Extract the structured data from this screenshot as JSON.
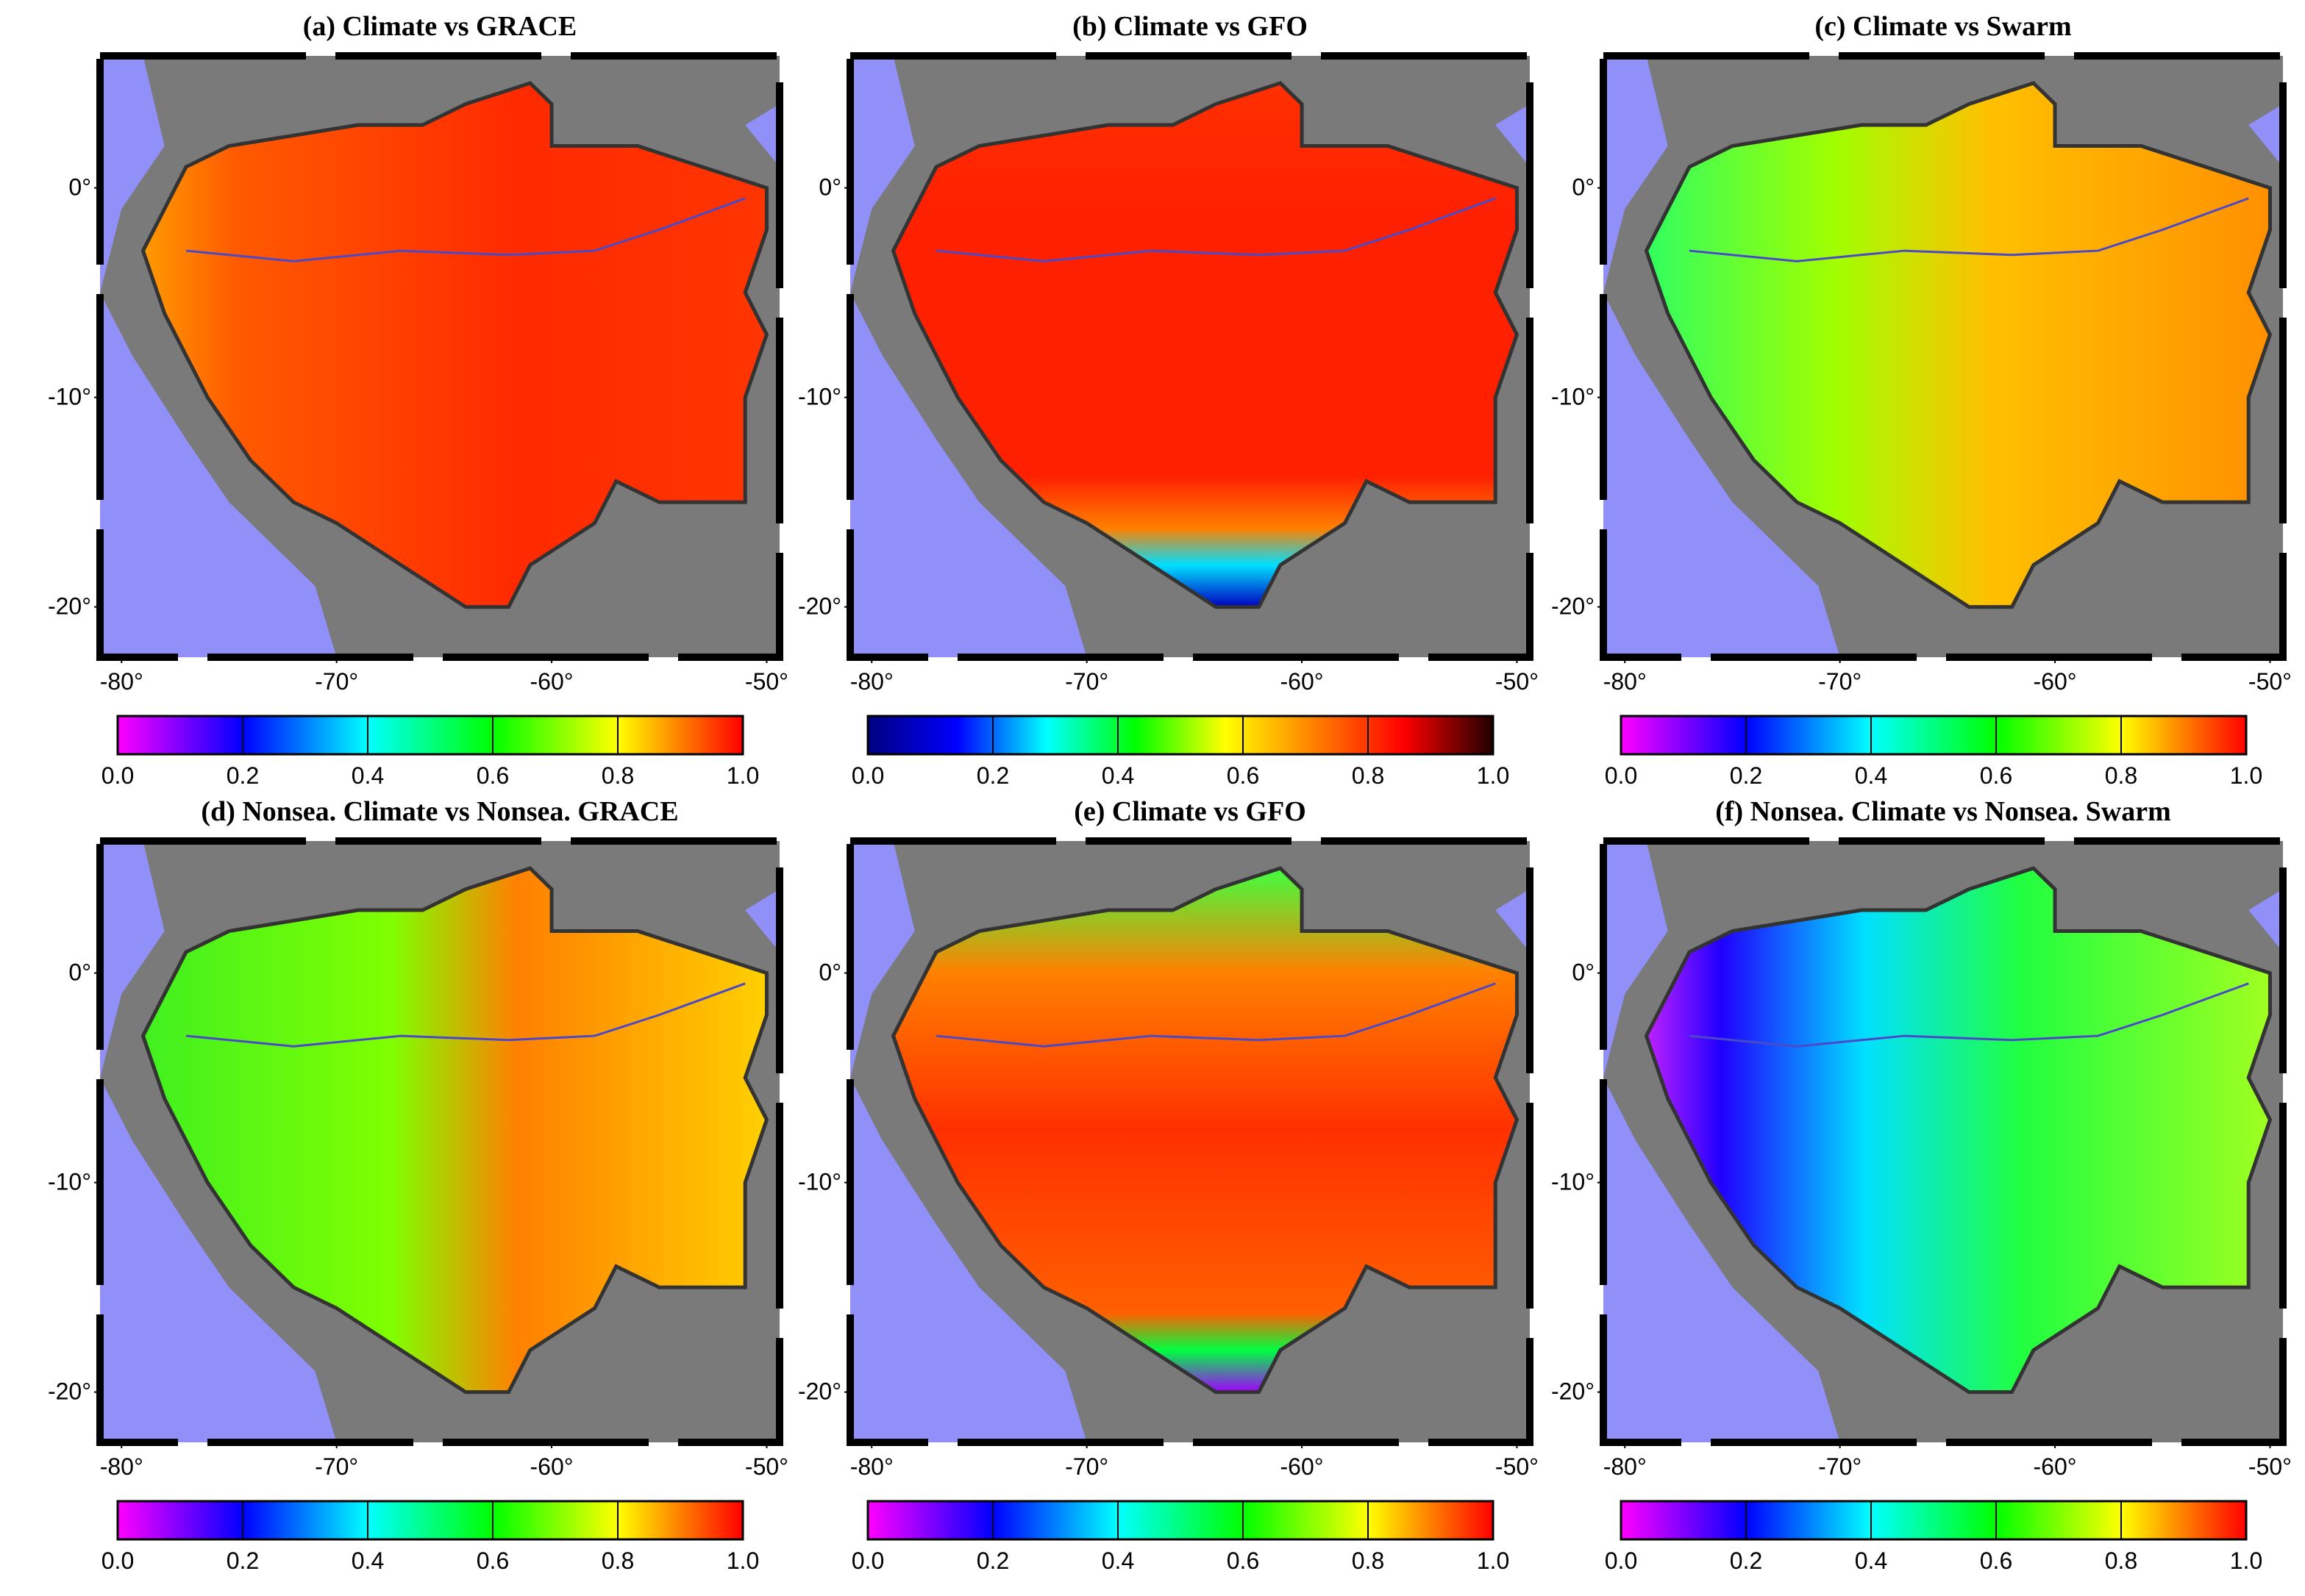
{
  "panels": [
    {
      "title": "(a) Climate vs GRACE",
      "xlim": [
        -81,
        -49.4
      ],
      "ylim": [
        -22.4,
        6.3
      ],
      "xticks": [
        {
          "value": -80,
          "label": "-80°"
        },
        {
          "value": -70,
          "label": "-70°"
        },
        {
          "value": -60,
          "label": "-60°"
        },
        {
          "value": -50,
          "label": "-50°"
        }
      ],
      "yticks": [
        {
          "value": 0,
          "label": "0°"
        },
        {
          "value": -10,
          "label": "-10°"
        },
        {
          "value": -20,
          "label": "-20°"
        }
      ],
      "colorbar": {
        "lim": [
          0,
          1
        ],
        "colormap": [
          "#ff00ff",
          "#0000ff",
          "#00ffff",
          "#00ff00",
          "#ffff00",
          "#ff0000"
        ],
        "ticks": [
          {
            "value": 0,
            "label": "0.0"
          },
          {
            "value": 0.2,
            "label": "0.2"
          },
          {
            "value": 0.4,
            "label": "0.4"
          },
          {
            "value": 0.6,
            "label": "0.6"
          },
          {
            "value": 0.8,
            "label": "0.8"
          },
          {
            "value": 1,
            "label": "1.0"
          }
        ]
      }
    },
    {
      "title": "(b) Climate vs GFO",
      "xlim": [
        -81,
        -49.4
      ],
      "ylim": [
        -22.4,
        6.3
      ],
      "xticks": [
        {
          "value": -80,
          "label": "-80°"
        },
        {
          "value": -70,
          "label": "-70°"
        },
        {
          "value": -60,
          "label": "-60°"
        },
        {
          "value": -50,
          "label": "-50°"
        }
      ],
      "yticks": [
        {
          "value": 0,
          "label": "0°"
        },
        {
          "value": -10,
          "label": "-10°"
        },
        {
          "value": -20,
          "label": "-20°"
        }
      ],
      "colorbar": {
        "lim": [
          0,
          1
        ],
        "colormap": [
          "#000080",
          "#0000ff",
          "#00ffff",
          "#00ff00",
          "#ffff00",
          "#ff8000",
          "#ff0000",
          "#200000"
        ],
        "ticks": [
          {
            "value": 0,
            "label": "0.0"
          },
          {
            "value": 0.2,
            "label": "0.2"
          },
          {
            "value": 0.4,
            "label": "0.4"
          },
          {
            "value": 0.6,
            "label": "0.6"
          },
          {
            "value": 0.8,
            "label": "0.8"
          },
          {
            "value": 1,
            "label": "1.0"
          }
        ]
      }
    },
    {
      "title": "(c) Climate vs Swarm",
      "xlim": [
        -81,
        -49.4
      ],
      "ylim": [
        -22.4,
        6.3
      ],
      "xticks": [
        {
          "value": -80,
          "label": "-80°"
        },
        {
          "value": -70,
          "label": "-70°"
        },
        {
          "value": -60,
          "label": "-60°"
        },
        {
          "value": -50,
          "label": "-50°"
        }
      ],
      "yticks": [
        {
          "value": 0,
          "label": "0°"
        },
        {
          "value": -10,
          "label": "-10°"
        },
        {
          "value": -20,
          "label": "-20°"
        }
      ],
      "colorbar": {
        "lim": [
          0,
          1
        ],
        "colormap": [
          "#ff00ff",
          "#0000ff",
          "#00ffff",
          "#00ff00",
          "#ffff00",
          "#ff0000"
        ],
        "ticks": [
          {
            "value": 0,
            "label": "0.0"
          },
          {
            "value": 0.2,
            "label": "0.2"
          },
          {
            "value": 0.4,
            "label": "0.4"
          },
          {
            "value": 0.6,
            "label": "0.6"
          },
          {
            "value": 0.8,
            "label": "0.8"
          },
          {
            "value": 1,
            "label": "1.0"
          }
        ]
      }
    },
    {
      "title": "(d) Nonsea. Climate vs Nonsea. GRACE",
      "xlim": [
        -81,
        -49.4
      ],
      "ylim": [
        -22.4,
        6.3
      ],
      "xticks": [
        {
          "value": -80,
          "label": "-80°"
        },
        {
          "value": -70,
          "label": "-70°"
        },
        {
          "value": -60,
          "label": "-60°"
        },
        {
          "value": -50,
          "label": "-50°"
        }
      ],
      "yticks": [
        {
          "value": 0,
          "label": "0°"
        },
        {
          "value": -10,
          "label": "-10°"
        },
        {
          "value": -20,
          "label": "-20°"
        }
      ],
      "colorbar": {
        "lim": [
          0,
          1
        ],
        "colormap": [
          "#ff00ff",
          "#0000ff",
          "#00ffff",
          "#00ff00",
          "#ffff00",
          "#ff0000"
        ],
        "ticks": [
          {
            "value": 0,
            "label": "0.0"
          },
          {
            "value": 0.2,
            "label": "0.2"
          },
          {
            "value": 0.4,
            "label": "0.4"
          },
          {
            "value": 0.6,
            "label": "0.6"
          },
          {
            "value": 0.8,
            "label": "0.8"
          },
          {
            "value": 1,
            "label": "1.0"
          }
        ]
      }
    },
    {
      "title": "(e) Climate vs GFO",
      "xlim": [
        -81,
        -49.4
      ],
      "ylim": [
        -22.4,
        6.3
      ],
      "xticks": [
        {
          "value": -80,
          "label": "-80°"
        },
        {
          "value": -70,
          "label": "-70°"
        },
        {
          "value": -60,
          "label": "-60°"
        },
        {
          "value": -50,
          "label": "-50°"
        }
      ],
      "yticks": [
        {
          "value": 0,
          "label": "0°"
        },
        {
          "value": -10,
          "label": "-10°"
        },
        {
          "value": -20,
          "label": "-20°"
        }
      ],
      "colorbar": {
        "lim": [
          0,
          1
        ],
        "colormap": [
          "#ff00ff",
          "#0000ff",
          "#00ffff",
          "#00ff00",
          "#ffff00",
          "#ff0000"
        ],
        "ticks": [
          {
            "value": 0,
            "label": "0.0"
          },
          {
            "value": 0.2,
            "label": "0.2"
          },
          {
            "value": 0.4,
            "label": "0.4"
          },
          {
            "value": 0.6,
            "label": "0.6"
          },
          {
            "value": 0.8,
            "label": "0.8"
          },
          {
            "value": 1,
            "label": "1.0"
          }
        ]
      }
    },
    {
      "title": "(f) Nonsea. Climate vs Nonsea. Swarm",
      "xlim": [
        -81,
        -49.4
      ],
      "ylim": [
        -22.4,
        6.3
      ],
      "xticks": [
        {
          "value": -80,
          "label": "-80°"
        },
        {
          "value": -70,
          "label": "-70°"
        },
        {
          "value": -60,
          "label": "-60°"
        },
        {
          "value": -50,
          "label": "-50°"
        }
      ],
      "yticks": [
        {
          "value": 0,
          "label": "0°"
        },
        {
          "value": -10,
          "label": "-10°"
        },
        {
          "value": -20,
          "label": "-20°"
        }
      ],
      "colorbar": {
        "lim": [
          0,
          1
        ],
        "colormap": [
          "#ff00ff",
          "#0000ff",
          "#00ffff",
          "#00ff00",
          "#ffff00",
          "#ff0000"
        ],
        "ticks": [
          {
            "value": 0,
            "label": "0.0"
          },
          {
            "value": 0.2,
            "label": "0.2"
          },
          {
            "value": 0.4,
            "label": "0.4"
          },
          {
            "value": 0.6,
            "label": "0.6"
          },
          {
            "value": 0.8,
            "label": "0.8"
          },
          {
            "value": 1,
            "label": "1.0"
          }
        ]
      }
    }
  ]
}
